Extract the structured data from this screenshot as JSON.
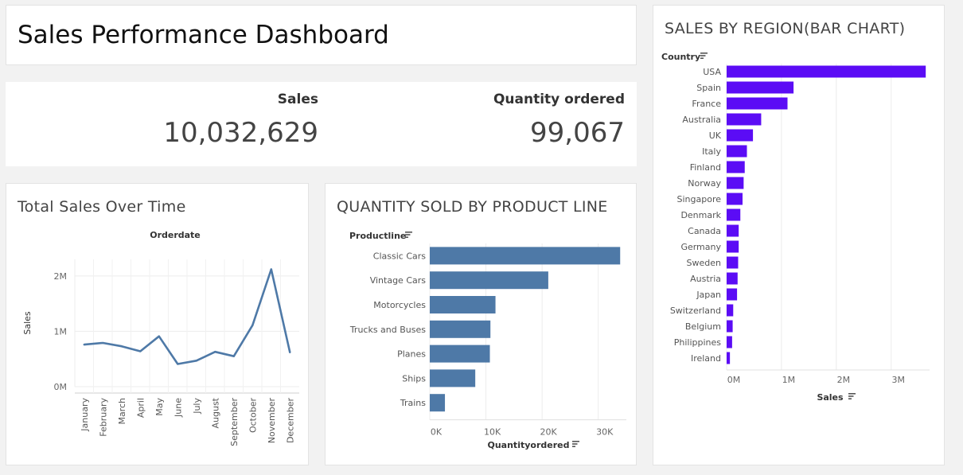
{
  "dashboard": {
    "title": "Sales Performance Dashboard"
  },
  "kpis": {
    "sales_label": "Sales",
    "sales_value": "10,032,629",
    "qty_label": "Quantity ordered",
    "qty_value": "99,067"
  },
  "colors": {
    "line": "#4e79a7",
    "product_bars": "#4e79a7",
    "region_bars": "#5b0cf5"
  },
  "chart_data": [
    {
      "type": "line",
      "title": "Total Sales Over Time",
      "header": "Orderdate",
      "ylabel": "Sales",
      "x": [
        "January",
        "February",
        "March",
        "April",
        "May",
        "June",
        "July",
        "August",
        "September",
        "October",
        "November",
        "December"
      ],
      "values": [
        760000,
        790000,
        730000,
        640000,
        910000,
        410000,
        470000,
        630000,
        550000,
        1110000,
        2120000,
        620000
      ],
      "yticks": [
        {
          "v": 0,
          "label": "0M"
        },
        {
          "v": 1000000,
          "label": "1M"
        },
        {
          "v": 2000000,
          "label": "2M"
        }
      ],
      "ylim": [
        0,
        2300000
      ],
      "grid": true
    },
    {
      "type": "bar",
      "orientation": "horizontal",
      "title": "QUANTITY SOLD BY PRODUCT LINE",
      "header": "Productline",
      "xlabel": "Quantityordered",
      "categories": [
        "Classic Cars",
        "Vintage Cars",
        "Motorcycles",
        "Trucks and Buses",
        "Planes",
        "Ships",
        "Trains"
      ],
      "values": [
        33900,
        21100,
        11700,
        10800,
        10700,
        8100,
        2700
      ],
      "xticks": [
        {
          "v": 0,
          "label": "0K"
        },
        {
          "v": 10000,
          "label": "10K"
        },
        {
          "v": 20000,
          "label": "20K"
        },
        {
          "v": 30000,
          "label": "30K"
        }
      ],
      "xlim": [
        0,
        35000
      ],
      "grid": true
    },
    {
      "type": "bar",
      "orientation": "horizontal",
      "title": "SALES BY REGION(BAR CHART)",
      "header": "Country",
      "xlabel": "Sales",
      "categories": [
        "USA",
        "Spain",
        "France",
        "Australia",
        "UK",
        "Italy",
        "Finland",
        "Norway",
        "Singapore",
        "Denmark",
        "Canada",
        "Germany",
        "Sweden",
        "Austria",
        "Japan",
        "Switzerland",
        "Belgium",
        "Philippines",
        "Ireland"
      ],
      "values": [
        3630000,
        1220000,
        1110000,
        630000,
        480000,
        370000,
        330000,
        310000,
        290000,
        250000,
        220000,
        220000,
        210000,
        200000,
        190000,
        120000,
        110000,
        100000,
        60000
      ],
      "xticks": [
        {
          "v": 0,
          "label": "0M"
        },
        {
          "v": 1000000,
          "label": "1M"
        },
        {
          "v": 2000000,
          "label": "2M"
        },
        {
          "v": 3000000,
          "label": "3M"
        }
      ],
      "xlim": [
        0,
        3700000
      ],
      "grid": true
    }
  ]
}
